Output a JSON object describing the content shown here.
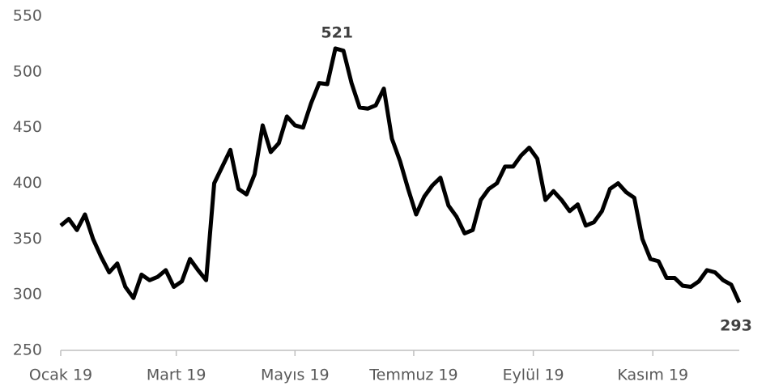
{
  "chart_data": {
    "type": "line",
    "color": "#000000",
    "values": [
      362,
      368,
      358,
      372,
      350,
      334,
      320,
      328,
      307,
      297,
      318,
      313,
      316,
      322,
      307,
      312,
      332,
      322,
      313,
      400,
      415,
      430,
      395,
      390,
      408,
      452,
      428,
      436,
      460,
      452,
      450,
      472,
      490,
      489,
      521,
      519,
      490,
      468,
      467,
      470,
      485,
      440,
      420,
      395,
      372,
      388,
      398,
      405,
      380,
      370,
      355,
      358,
      385,
      395,
      400,
      415,
      415,
      425,
      432,
      422,
      385,
      393,
      385,
      375,
      381,
      362,
      365,
      375,
      395,
      400,
      392,
      387,
      350,
      332,
      330,
      315,
      315,
      308,
      307,
      312,
      322,
      320,
      313,
      309,
      293
    ],
    "ylim": [
      250,
      550
    ],
    "yticks": [
      250,
      300,
      350,
      400,
      450,
      500,
      550
    ],
    "xlim": [
      0,
      84
    ],
    "xticks": [
      {
        "value": 0,
        "label": "Ocak 19"
      },
      {
        "value": 14.3,
        "label": "Mart 19"
      },
      {
        "value": 29,
        "label": "Mayıs 19"
      },
      {
        "value": 43.7,
        "label": "Temmuz 19"
      },
      {
        "value": 58.5,
        "label": "Eylül 19"
      },
      {
        "value": 73.3,
        "label": "Kasım 19"
      }
    ],
    "annotations": [
      {
        "text": "521",
        "x": 34,
        "y": 521
      },
      {
        "text": "293",
        "x": 84,
        "y": 293
      }
    ],
    "grid": false
  }
}
